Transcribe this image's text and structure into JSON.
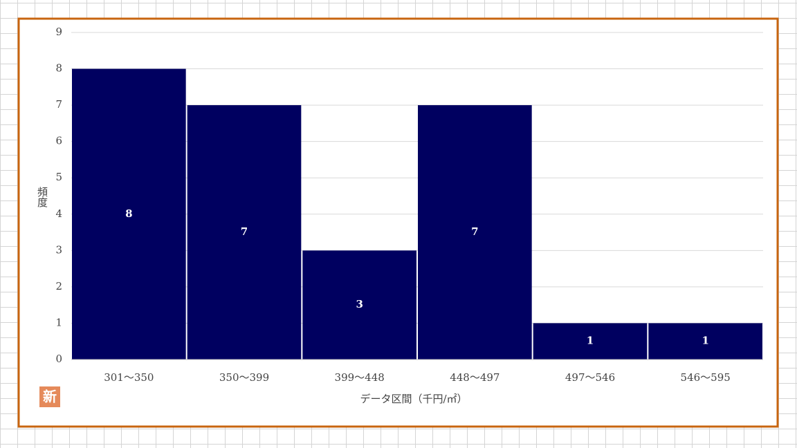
{
  "chart_data": {
    "type": "bar",
    "categories": [
      "301～350",
      "350～399",
      "399～448",
      "448～497",
      "497～546",
      "546～595"
    ],
    "values": [
      8,
      7,
      3,
      7,
      1,
      1
    ],
    "color": "#000060",
    "y_label": "頻度",
    "x_label": "データ区間（千円/㎡）",
    "badge": "新",
    "ylim": [
      0,
      9
    ],
    "yticks": [
      0,
      1,
      2,
      3,
      4,
      5,
      6,
      7,
      8,
      9
    ],
    "grid": true
  }
}
